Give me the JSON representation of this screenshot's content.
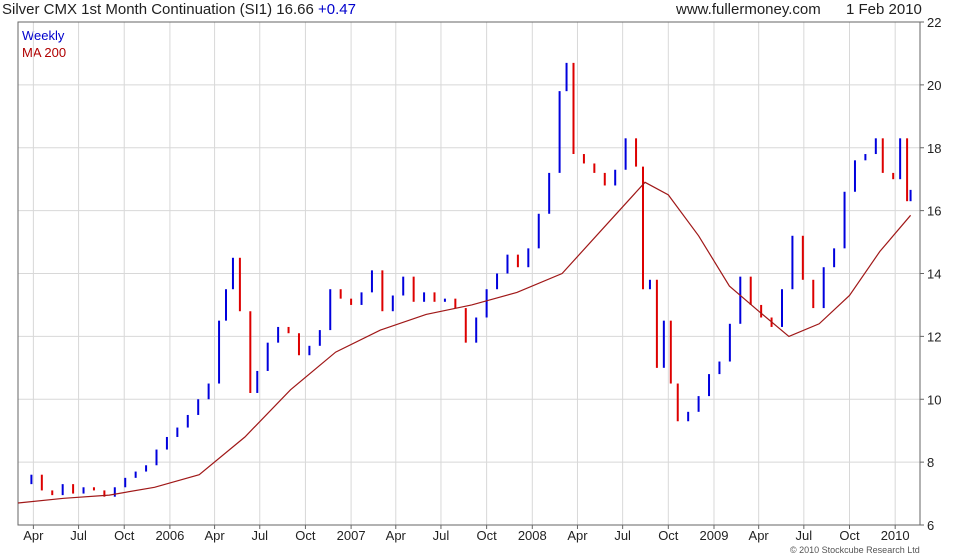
{
  "chart_data": {
    "type": "line",
    "title": "Silver CMX 1st Month Continuation (SI1) 16.66",
    "change": "+0.47",
    "source": "www.fullermoney.com",
    "date": "1 Feb 2010",
    "copyright": "© 2010 Stockcube Research Ltd",
    "y_axis_side": "right",
    "grid": true,
    "ylim": [
      6,
      22
    ],
    "yticks": [
      6,
      8,
      10,
      12,
      14,
      16,
      18,
      20,
      22
    ],
    "xlim": [
      "2005-03-01",
      "2010-02-20"
    ],
    "xticks": [
      {
        "label": "Apr",
        "date": "2005-04-01"
      },
      {
        "label": "Jul",
        "date": "2005-07-01"
      },
      {
        "label": "Oct",
        "date": "2005-10-01"
      },
      {
        "label": "2006",
        "date": "2006-01-01"
      },
      {
        "label": "Apr",
        "date": "2006-04-01"
      },
      {
        "label": "Jul",
        "date": "2006-07-01"
      },
      {
        "label": "Oct",
        "date": "2006-10-01"
      },
      {
        "label": "2007",
        "date": "2007-01-01"
      },
      {
        "label": "Apr",
        "date": "2007-04-01"
      },
      {
        "label": "Jul",
        "date": "2007-07-01"
      },
      {
        "label": "Oct",
        "date": "2007-10-01"
      },
      {
        "label": "2008",
        "date": "2008-01-01"
      },
      {
        "label": "Apr",
        "date": "2008-04-01"
      },
      {
        "label": "Jul",
        "date": "2008-07-01"
      },
      {
        "label": "Oct",
        "date": "2008-10-01"
      },
      {
        "label": "2009",
        "date": "2009-01-01"
      },
      {
        "label": "Apr",
        "date": "2009-04-01"
      },
      {
        "label": "Jul",
        "date": "2009-07-01"
      },
      {
        "label": "Oct",
        "date": "2009-10-01"
      },
      {
        "label": "2010",
        "date": "2010-01-01"
      }
    ],
    "colors": {
      "up": "#0000dd",
      "down": "#dd0000",
      "ma": "#a01818",
      "grid": "#d8d8d8"
    },
    "series": [
      {
        "name": "Weekly",
        "close": [
          {
            "date": "2005-03-07",
            "value": 7.3
          },
          {
            "date": "2005-03-28",
            "value": 7.6
          },
          {
            "date": "2005-04-18",
            "value": 7.1
          },
          {
            "date": "2005-05-09",
            "value": 6.95
          },
          {
            "date": "2005-05-30",
            "value": 7.3
          },
          {
            "date": "2005-06-20",
            "value": 7.0
          },
          {
            "date": "2005-07-11",
            "value": 7.2
          },
          {
            "date": "2005-08-01",
            "value": 7.1
          },
          {
            "date": "2005-08-22",
            "value": 6.9
          },
          {
            "date": "2005-09-12",
            "value": 7.2
          },
          {
            "date": "2005-10-03",
            "value": 7.5
          },
          {
            "date": "2005-10-24",
            "value": 7.7
          },
          {
            "date": "2005-11-14",
            "value": 7.9
          },
          {
            "date": "2005-12-05",
            "value": 8.4
          },
          {
            "date": "2005-12-26",
            "value": 8.8
          },
          {
            "date": "2006-01-16",
            "value": 9.1
          },
          {
            "date": "2006-02-06",
            "value": 9.5
          },
          {
            "date": "2006-02-27",
            "value": 10.0
          },
          {
            "date": "2006-03-20",
            "value": 10.5
          },
          {
            "date": "2006-04-10",
            "value": 12.5
          },
          {
            "date": "2006-04-24",
            "value": 13.5
          },
          {
            "date": "2006-05-08",
            "value": 14.5
          },
          {
            "date": "2006-05-22",
            "value": 12.8
          },
          {
            "date": "2006-06-12",
            "value": 10.2
          },
          {
            "date": "2006-06-26",
            "value": 10.9
          },
          {
            "date": "2006-07-17",
            "value": 11.8
          },
          {
            "date": "2006-08-07",
            "value": 12.3
          },
          {
            "date": "2006-08-28",
            "value": 12.1
          },
          {
            "date": "2006-09-18",
            "value": 11.4
          },
          {
            "date": "2006-10-09",
            "value": 11.7
          },
          {
            "date": "2006-10-30",
            "value": 12.2
          },
          {
            "date": "2006-11-20",
            "value": 13.5
          },
          {
            "date": "2006-12-11",
            "value": 13.2
          },
          {
            "date": "2007-01-01",
            "value": 13.0
          },
          {
            "date": "2007-01-22",
            "value": 13.4
          },
          {
            "date": "2007-02-12",
            "value": 14.1
          },
          {
            "date": "2007-03-05",
            "value": 12.8
          },
          {
            "date": "2007-03-26",
            "value": 13.3
          },
          {
            "date": "2007-04-16",
            "value": 13.9
          },
          {
            "date": "2007-05-07",
            "value": 13.1
          },
          {
            "date": "2007-05-28",
            "value": 13.4
          },
          {
            "date": "2007-06-18",
            "value": 13.1
          },
          {
            "date": "2007-07-09",
            "value": 13.2
          },
          {
            "date": "2007-07-30",
            "value": 12.9
          },
          {
            "date": "2007-08-20",
            "value": 11.8
          },
          {
            "date": "2007-09-10",
            "value": 12.6
          },
          {
            "date": "2007-10-01",
            "value": 13.5
          },
          {
            "date": "2007-10-22",
            "value": 14.0
          },
          {
            "date": "2007-11-12",
            "value": 14.6
          },
          {
            "date": "2007-12-03",
            "value": 14.2
          },
          {
            "date": "2007-12-24",
            "value": 14.8
          },
          {
            "date": "2008-01-14",
            "value": 15.9
          },
          {
            "date": "2008-02-04",
            "value": 17.2
          },
          {
            "date": "2008-02-25",
            "value": 19.8
          },
          {
            "date": "2008-03-10",
            "value": 20.7
          },
          {
            "date": "2008-03-24",
            "value": 17.8
          },
          {
            "date": "2008-04-14",
            "value": 17.5
          },
          {
            "date": "2008-05-05",
            "value": 17.2
          },
          {
            "date": "2008-05-26",
            "value": 16.8
          },
          {
            "date": "2008-06-16",
            "value": 17.3
          },
          {
            "date": "2008-07-07",
            "value": 18.3
          },
          {
            "date": "2008-07-28",
            "value": 17.4
          },
          {
            "date": "2008-08-11",
            "value": 13.5
          },
          {
            "date": "2008-08-25",
            "value": 13.8
          },
          {
            "date": "2008-09-08",
            "value": 11.0
          },
          {
            "date": "2008-09-22",
            "value": 12.5
          },
          {
            "date": "2008-10-06",
            "value": 10.5
          },
          {
            "date": "2008-10-20",
            "value": 9.3
          },
          {
            "date": "2008-11-10",
            "value": 9.6
          },
          {
            "date": "2008-12-01",
            "value": 10.1
          },
          {
            "date": "2008-12-22",
            "value": 10.8
          },
          {
            "date": "2009-01-12",
            "value": 11.2
          },
          {
            "date": "2009-02-02",
            "value": 12.4
          },
          {
            "date": "2009-02-23",
            "value": 13.9
          },
          {
            "date": "2009-03-16",
            "value": 13.0
          },
          {
            "date": "2009-04-06",
            "value": 12.6
          },
          {
            "date": "2009-04-27",
            "value": 12.3
          },
          {
            "date": "2009-05-18",
            "value": 13.5
          },
          {
            "date": "2009-06-08",
            "value": 15.2
          },
          {
            "date": "2009-06-29",
            "value": 13.8
          },
          {
            "date": "2009-07-20",
            "value": 12.9
          },
          {
            "date": "2009-08-10",
            "value": 14.2
          },
          {
            "date": "2009-08-31",
            "value": 14.8
          },
          {
            "date": "2009-09-21",
            "value": 16.6
          },
          {
            "date": "2009-10-12",
            "value": 17.6
          },
          {
            "date": "2009-11-02",
            "value": 17.8
          },
          {
            "date": "2009-11-23",
            "value": 18.3
          },
          {
            "date": "2009-12-07",
            "value": 17.2
          },
          {
            "date": "2009-12-28",
            "value": 17.0
          },
          {
            "date": "2010-01-11",
            "value": 18.3
          },
          {
            "date": "2010-01-25",
            "value": 16.3
          },
          {
            "date": "2010-02-01",
            "value": 16.66
          }
        ]
      },
      {
        "name": "MA 200",
        "values": [
          {
            "date": "2005-03-01",
            "value": 6.7
          },
          {
            "date": "2005-06-01",
            "value": 6.85
          },
          {
            "date": "2005-09-01",
            "value": 6.95
          },
          {
            "date": "2005-12-01",
            "value": 7.2
          },
          {
            "date": "2006-03-01",
            "value": 7.6
          },
          {
            "date": "2006-06-01",
            "value": 8.8
          },
          {
            "date": "2006-09-01",
            "value": 10.3
          },
          {
            "date": "2006-12-01",
            "value": 11.5
          },
          {
            "date": "2007-03-01",
            "value": 12.2
          },
          {
            "date": "2007-06-01",
            "value": 12.7
          },
          {
            "date": "2007-09-01",
            "value": 13.0
          },
          {
            "date": "2007-12-01",
            "value": 13.4
          },
          {
            "date": "2008-03-01",
            "value": 14.0
          },
          {
            "date": "2008-06-01",
            "value": 15.6
          },
          {
            "date": "2008-08-15",
            "value": 16.9
          },
          {
            "date": "2008-10-01",
            "value": 16.5
          },
          {
            "date": "2008-12-01",
            "value": 15.2
          },
          {
            "date": "2009-02-01",
            "value": 13.6
          },
          {
            "date": "2009-04-01",
            "value": 12.8
          },
          {
            "date": "2009-06-01",
            "value": 12.0
          },
          {
            "date": "2009-08-01",
            "value": 12.4
          },
          {
            "date": "2009-10-01",
            "value": 13.3
          },
          {
            "date": "2009-12-01",
            "value": 14.7
          },
          {
            "date": "2010-02-01",
            "value": 15.85
          }
        ]
      }
    ]
  }
}
